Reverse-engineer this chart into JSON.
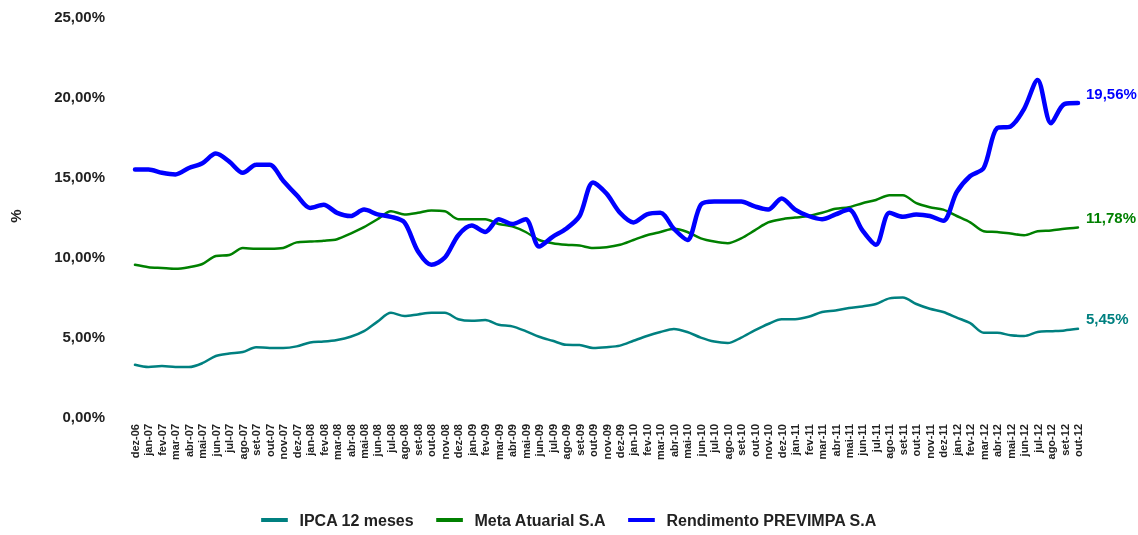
{
  "chart_data": {
    "type": "line",
    "ylabel": "%",
    "categories": [
      "dez-06",
      "jan-07",
      "fev-07",
      "mar-07",
      "abr-07",
      "mai-07",
      "jun-07",
      "jul-07",
      "ago-07",
      "set-07",
      "out-07",
      "nov-07",
      "dez-07",
      "jan-08",
      "fev-08",
      "mar-08",
      "abr-08",
      "mai-08",
      "jun-08",
      "jul-08",
      "ago-08",
      "set-08",
      "out-08",
      "nov-08",
      "dez-08",
      "jan-09",
      "fev-09",
      "mar-09",
      "abr-09",
      "mai-09",
      "jun-09",
      "jul-09",
      "ago-09",
      "set-09",
      "out-09",
      "nov-09",
      "dez-09",
      "jan-10",
      "fev-10",
      "mar-10",
      "abr-10",
      "mai-10",
      "jun-10",
      "jul-10",
      "ago-10",
      "set-10",
      "out-10",
      "nov-10",
      "dez-10",
      "jan-11",
      "fev-11",
      "mar-11",
      "abr-11",
      "mai-11",
      "jun-11",
      "jul-11",
      "ago-11",
      "set-11",
      "out-11",
      "nov-11",
      "dez-11",
      "jan-12",
      "fev-12",
      "mar-12",
      "abr-12",
      "mai-12",
      "jun-12",
      "jul-12",
      "ago-12",
      "set-12",
      "out-12"
    ],
    "series": [
      {
        "name": "IPCA 12 meses",
        "color": "#008080",
        "values": [
          3.2,
          3.06,
          3.12,
          3.06,
          3.06,
          3.3,
          3.75,
          3.9,
          4.0,
          4.3,
          4.25,
          4.25,
          4.35,
          4.6,
          4.65,
          4.75,
          4.95,
          5.3,
          5.9,
          6.45,
          6.25,
          6.35,
          6.45,
          6.45,
          6.05,
          5.95,
          6.0,
          5.7,
          5.6,
          5.3,
          4.95,
          4.7,
          4.45,
          4.44,
          4.25,
          4.3,
          4.4,
          4.7,
          5.0,
          5.25,
          5.44,
          5.25,
          4.9,
          4.65,
          4.56,
          4.9,
          5.35,
          5.75,
          6.05,
          6.05,
          6.2,
          6.5,
          6.6,
          6.75,
          6.85,
          7.0,
          7.35,
          7.4,
          7.0,
          6.7,
          6.5,
          6.15,
          5.8,
          5.2,
          5.2,
          5.05,
          5.0,
          5.25,
          5.3,
          5.35,
          5.45
        ],
        "value_labels": [
          null,
          null,
          null,
          null,
          null,
          null,
          null,
          null,
          null,
          null,
          null,
          null,
          null,
          null,
          null,
          null,
          null,
          null,
          null,
          null,
          null,
          null,
          null,
          null,
          null,
          null,
          null,
          null,
          null,
          null,
          null,
          null,
          null,
          null,
          null,
          null,
          null,
          null,
          null,
          null,
          null,
          null,
          null,
          null,
          null,
          null,
          null,
          null,
          null,
          null,
          null,
          null,
          null,
          null,
          null,
          null,
          null,
          null,
          null,
          null,
          null,
          null,
          null,
          null,
          null,
          null,
          null,
          null,
          null,
          null,
          "5,45%"
        ]
      },
      {
        "name": "Meta Atuarial S.A",
        "color": "#008000",
        "values": [
          9.45,
          9.3,
          9.25,
          9.2,
          9.3,
          9.5,
          10.0,
          10.06,
          10.5,
          10.45,
          10.45,
          10.5,
          10.85,
          10.9,
          10.95,
          11.05,
          11.4,
          11.8,
          12.3,
          12.8,
          12.6,
          12.7,
          12.85,
          12.8,
          12.3,
          12.3,
          12.3,
          12.0,
          11.85,
          11.5,
          11.0,
          10.8,
          10.7,
          10.65,
          10.5,
          10.55,
          10.7,
          11.0,
          11.3,
          11.5,
          11.7,
          11.5,
          11.1,
          10.9,
          10.8,
          11.1,
          11.6,
          12.1,
          12.3,
          12.4,
          12.5,
          12.7,
          12.95,
          13.05,
          13.3,
          13.5,
          13.8,
          13.8,
          13.3,
          13.05,
          12.9,
          12.5,
          12.1,
          11.55,
          11.5,
          11.4,
          11.3,
          11.55,
          11.6,
          11.7,
          11.78
        ],
        "value_labels": [
          null,
          null,
          null,
          null,
          null,
          null,
          null,
          null,
          null,
          null,
          null,
          null,
          null,
          null,
          null,
          null,
          null,
          null,
          null,
          null,
          null,
          null,
          null,
          null,
          null,
          null,
          null,
          null,
          null,
          null,
          null,
          null,
          null,
          null,
          null,
          null,
          null,
          null,
          null,
          null,
          null,
          null,
          null,
          null,
          null,
          null,
          null,
          null,
          null,
          null,
          null,
          null,
          null,
          null,
          null,
          null,
          null,
          null,
          null,
          null,
          null,
          null,
          null,
          null,
          null,
          null,
          null,
          null,
          null,
          null,
          "11,78%"
        ]
      },
      {
        "name": "Rendimento PREVIMPA S.A",
        "color": "#0000ff",
        "values": [
          15.4,
          15.4,
          15.2,
          15.1,
          15.5,
          15.8,
          16.4,
          15.9,
          15.2,
          15.7,
          15.7,
          14.7,
          13.8,
          13.0,
          13.2,
          12.7,
          12.5,
          12.9,
          12.6,
          12.45,
          12.1,
          10.3,
          9.45,
          9.9,
          11.3,
          11.9,
          11.5,
          12.3,
          12.0,
          12.3,
          10.6,
          11.2,
          11.7,
          12.5,
          14.6,
          13.9,
          12.7,
          12.1,
          12.6,
          12.7,
          11.7,
          11.0,
          13.2,
          13.4,
          13.4,
          13.4,
          13.1,
          12.9,
          13.6,
          12.9,
          12.5,
          12.3,
          12.6,
          12.9,
          11.6,
          10.7,
          12.7,
          12.45,
          12.6,
          12.5,
          12.2,
          14.0,
          15.0,
          15.5,
          18.0,
          18.1,
          19.2,
          21.0,
          18.3,
          19.5,
          19.56
        ],
        "value_labels": [
          null,
          null,
          null,
          null,
          null,
          null,
          null,
          null,
          null,
          null,
          null,
          null,
          null,
          null,
          null,
          null,
          null,
          null,
          null,
          null,
          null,
          null,
          null,
          null,
          null,
          null,
          null,
          null,
          null,
          null,
          null,
          null,
          null,
          null,
          null,
          null,
          null,
          null,
          null,
          null,
          null,
          null,
          null,
          null,
          null,
          null,
          null,
          null,
          null,
          null,
          null,
          null,
          null,
          null,
          null,
          null,
          null,
          null,
          null,
          null,
          null,
          null,
          null,
          null,
          null,
          null,
          null,
          null,
          null,
          null,
          "19,56%"
        ]
      }
    ],
    "ylim": [
      0,
      25
    ],
    "yticks": [
      {
        "value": 0,
        "label": "0,00%"
      },
      {
        "value": 5,
        "label": "5,00%"
      },
      {
        "value": 10,
        "label": "10,00%"
      },
      {
        "value": 15,
        "label": "15,00%"
      },
      {
        "value": 20,
        "label": "20,00%"
      },
      {
        "value": 25,
        "label": "25,00%"
      }
    ],
    "grid": false,
    "legend": "bottom",
    "marker": "none",
    "line_style": "solid"
  }
}
